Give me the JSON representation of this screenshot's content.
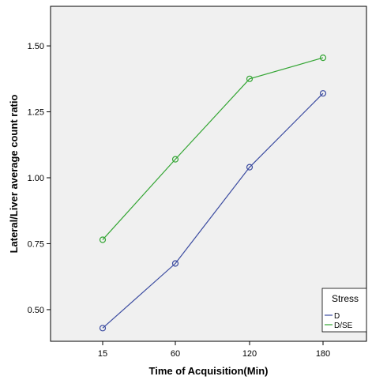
{
  "chart_data": {
    "type": "line",
    "title": "",
    "xlabel": "Time of Acquisition(Min)",
    "ylabel": "Lateral/Liver average count ratio",
    "categories": [
      "15",
      "60",
      "120",
      "180"
    ],
    "yticks": [
      "0.50",
      "0.75",
      "1.00",
      "1.25",
      "1.50"
    ],
    "ylim": [
      0.38,
      1.65
    ],
    "grid": false,
    "legend": {
      "title": "Stress",
      "placement": "bottom-right"
    },
    "series": [
      {
        "name": "D",
        "color": "#3b4ba0",
        "values": [
          0.43,
          0.675,
          1.04,
          1.32
        ]
      },
      {
        "name": "D/SE",
        "color": "#33a533",
        "values": [
          0.765,
          1.07,
          1.375,
          1.455
        ]
      }
    ],
    "colors": {
      "plot_background": "#f0f0f0"
    }
  }
}
